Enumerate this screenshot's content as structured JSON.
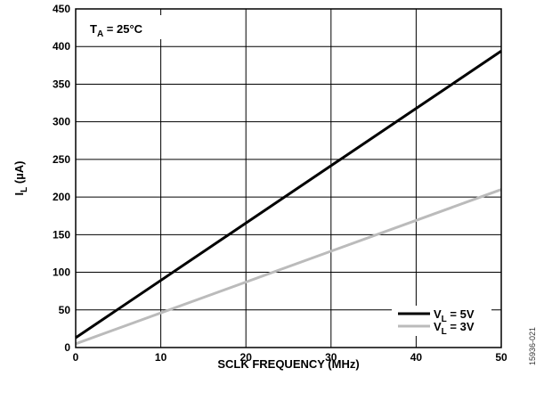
{
  "chart_data": {
    "type": "line",
    "xlabel": "SCLK FREQUENCY (MHz)",
    "ylabel": {
      "main": "I",
      "sub": "L",
      "rest": " (µA)"
    },
    "xlim": [
      0,
      50
    ],
    "ylim": [
      0,
      450
    ],
    "xticks": [
      "0",
      "10",
      "20",
      "30",
      "40",
      "50"
    ],
    "yticks": [
      "0",
      "50",
      "100",
      "150",
      "200",
      "250",
      "300",
      "350",
      "400",
      "450"
    ],
    "xtick_values": [
      0,
      10,
      20,
      30,
      40,
      50
    ],
    "ytick_values": [
      0,
      50,
      100,
      150,
      200,
      250,
      300,
      350,
      400,
      450
    ],
    "grid": true,
    "legend_position": "bottom-right",
    "annotation": {
      "main": "T",
      "sub": "A",
      "rest": " = 25°C"
    },
    "series": [
      {
        "name": {
          "main": "V",
          "sub": "L",
          "rest": " = 5V"
        },
        "color": "#000000",
        "x": [
          0,
          50
        ],
        "y": [
          13,
          394
        ]
      },
      {
        "name": {
          "main": "V",
          "sub": "L",
          "rest": " = 3V"
        },
        "color": "#bbbbbb",
        "x": [
          0,
          50
        ],
        "y": [
          5,
          210
        ]
      }
    ]
  },
  "figure_id": "15936-021"
}
